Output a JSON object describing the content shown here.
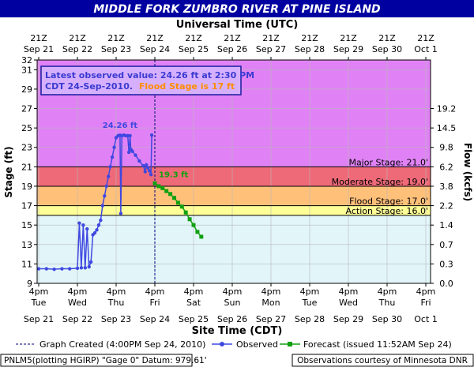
{
  "title": "MIDDLE FORK ZUMBRO RIVER AT PINE ISLAND",
  "top_axis_title": "Universal Time (UTC)",
  "bottom_axis_title": "Site Time (CDT)",
  "y_left_label": "Stage (ft)",
  "y_right_label": "Flow (kcfs)",
  "utc_ticks": [
    [
      "21Z",
      "Sep 21"
    ],
    [
      "21Z",
      "Sep 22"
    ],
    [
      "21Z",
      "Sep 23"
    ],
    [
      "21Z",
      "Sep 24"
    ],
    [
      "21Z",
      "Sep 25"
    ],
    [
      "21Z",
      "Sep 26"
    ],
    [
      "21Z",
      "Sep 27"
    ],
    [
      "21Z",
      "Sep 28"
    ],
    [
      "21Z",
      "Sep 29"
    ],
    [
      "21Z",
      "Sep 30"
    ],
    [
      "21Z",
      "Oct 1"
    ]
  ],
  "local_ticks": [
    [
      "4pm",
      "Tue",
      "Sep 21"
    ],
    [
      "4pm",
      "Wed",
      "Sep 22"
    ],
    [
      "4pm",
      "Thu",
      "Sep 23"
    ],
    [
      "4pm",
      "Fri",
      "Sep 24"
    ],
    [
      "4pm",
      "Sat",
      "Sep 25"
    ],
    [
      "4pm",
      "Sun",
      "Sep 26"
    ],
    [
      "4pm",
      "Mon",
      "Sep 27"
    ],
    [
      "4pm",
      "Tue",
      "Sep 28"
    ],
    [
      "4pm",
      "Wed",
      "Sep 29"
    ],
    [
      "4pm",
      "Thu",
      "Sep 30"
    ],
    [
      "4pm",
      "Fri",
      "Oct 1"
    ]
  ],
  "info_box": {
    "line1": "Latest observed value: 24.26 ft at 2:30 PM",
    "line2_prefix": "CDT 24-Sep-2010.",
    "line2_flood": "Flood Stage is 17 ft"
  },
  "legend": {
    "created": "Graph Created (4:00PM Sep 24, 2010)",
    "observed": "Observed",
    "forecast": "Forecast (issued 11:52AM Sep 24)"
  },
  "footer": {
    "left": "PNLM5(plotting HGIRP) \"Gage 0\" Datum: 979.61'",
    "right": "Observations courtesy of Minnesota DNR"
  },
  "colors": {
    "title_bg": "#0000a0",
    "observed": "#3f48e0",
    "forecast": "#10a010",
    "major_band": "#e082f5",
    "moderate_band": "#ef6a78",
    "flood_band": "#ffc07a",
    "action_band": "#ffff98",
    "below_band": "#e2f6fa",
    "created_line": "#000080",
    "flood_text": "#ff8c00"
  },
  "chart_data": {
    "type": "line",
    "x_unit": "days since 4pm CDT Sep 21, 2010",
    "ylim": [
      9,
      32
    ],
    "y_ticks_left": [
      9,
      11,
      13,
      15,
      17,
      19,
      21,
      23,
      25,
      27,
      29,
      31,
      32
    ],
    "flow_ticks": [
      {
        "stage": 9,
        "label": "0.0"
      },
      {
        "stage": 11,
        "label": "0.3"
      },
      {
        "stage": 13,
        "label": "0.7"
      },
      {
        "stage": 15,
        "label": "1.4"
      },
      {
        "stage": 17,
        "label": "2.2"
      },
      {
        "stage": 19,
        "label": "3.8"
      },
      {
        "stage": 21,
        "label": "6.2"
      },
      {
        "stage": 23,
        "label": "9.8"
      },
      {
        "stage": 25,
        "label": "14.5"
      },
      {
        "stage": 27,
        "label": "19.2"
      }
    ],
    "thresholds": [
      {
        "name": "Major Stage: 21.0'",
        "value": 21.0
      },
      {
        "name": "Moderate Stage: 19.0'",
        "value": 19.0
      },
      {
        "name": "Flood Stage: 17.0'",
        "value": 17.0
      },
      {
        "name": "Action Stage: 16.0'",
        "value": 16.0
      }
    ],
    "peak_label": "24.26 ft",
    "forecast_label": "19.3 ft",
    "created_x": 3.0,
    "series": [
      {
        "name": "Observed",
        "points": [
          [
            0.0,
            10.5
          ],
          [
            0.2,
            10.5
          ],
          [
            0.4,
            10.45
          ],
          [
            0.6,
            10.5
          ],
          [
            0.8,
            10.5
          ],
          [
            1.0,
            10.55
          ],
          [
            1.05,
            15.2
          ],
          [
            1.1,
            10.6
          ],
          [
            1.15,
            15.0
          ],
          [
            1.2,
            10.6
          ],
          [
            1.25,
            14.6
          ],
          [
            1.3,
            10.7
          ],
          [
            1.35,
            11.2
          ],
          [
            1.4,
            14.0
          ],
          [
            1.45,
            14.2
          ],
          [
            1.5,
            14.5
          ],
          [
            1.55,
            15.0
          ],
          [
            1.6,
            15.5
          ],
          [
            1.65,
            17.0
          ],
          [
            1.7,
            18.0
          ],
          [
            1.75,
            19.0
          ],
          [
            1.8,
            20.0
          ],
          [
            1.85,
            21.0
          ],
          [
            1.9,
            22.0
          ],
          [
            1.95,
            23.0
          ],
          [
            2.0,
            24.0
          ],
          [
            2.05,
            24.2
          ],
          [
            2.1,
            24.25
          ],
          [
            2.12,
            16.2
          ],
          [
            2.15,
            24.2
          ],
          [
            2.2,
            24.26
          ],
          [
            2.25,
            24.2
          ],
          [
            2.3,
            24.2
          ],
          [
            2.33,
            22.5
          ],
          [
            2.36,
            24.2
          ],
          [
            2.38,
            22.8
          ],
          [
            2.42,
            22.6
          ],
          [
            2.5,
            22.2
          ],
          [
            2.6,
            21.6
          ],
          [
            2.7,
            21.1
          ],
          [
            2.75,
            20.5
          ],
          [
            2.78,
            21.2
          ],
          [
            2.82,
            20.9
          ],
          [
            2.86,
            20.6
          ],
          [
            2.9,
            20.2
          ],
          [
            2.92,
            24.26
          ]
        ]
      },
      {
        "name": "Forecast",
        "points": [
          [
            3.0,
            19.3
          ],
          [
            3.1,
            19.0
          ],
          [
            3.2,
            18.8
          ],
          [
            3.3,
            18.5
          ],
          [
            3.4,
            18.2
          ],
          [
            3.5,
            17.8
          ],
          [
            3.6,
            17.3
          ],
          [
            3.7,
            16.9
          ],
          [
            3.8,
            16.3
          ],
          [
            3.9,
            15.6
          ],
          [
            4.0,
            15.0
          ],
          [
            4.1,
            14.3
          ],
          [
            4.2,
            13.8
          ]
        ]
      }
    ]
  }
}
